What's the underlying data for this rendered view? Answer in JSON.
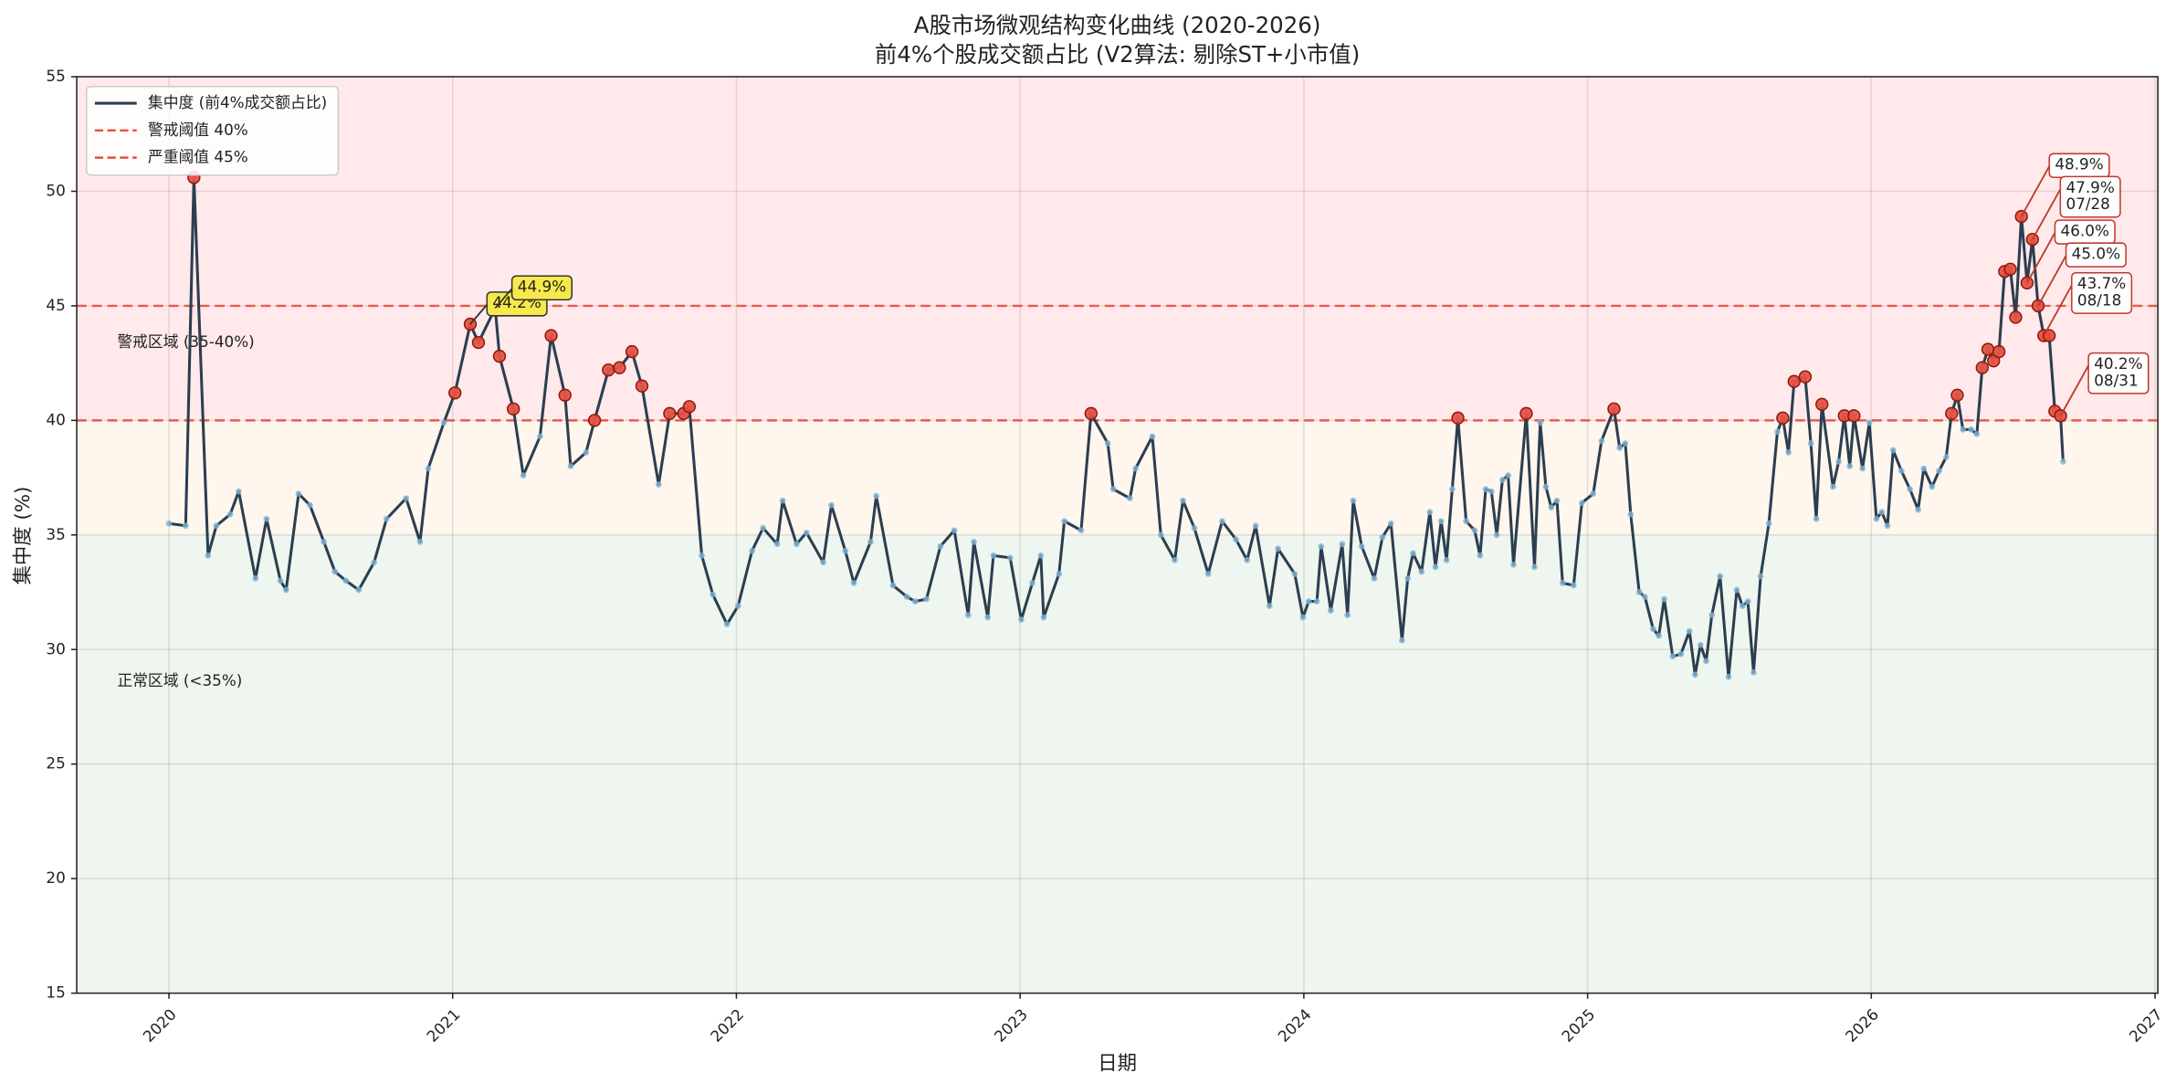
{
  "chart_data": {
    "type": "line",
    "title": "A股市场微观结构变化曲线 (2020-2026)",
    "subtitle": "前4%个股成交额占比 (V2算法: 剔除ST+小市值)",
    "x_label": "日期",
    "y_label": "集中度 (%)",
    "xlim": [
      2019.675,
      2027.01
    ],
    "xticks": [
      2020,
      2021,
      2022,
      2023,
      2024,
      2025,
      2026,
      2027
    ],
    "ylim": [
      15,
      55
    ],
    "yticks": [
      15,
      20,
      25,
      30,
      35,
      40,
      45,
      50,
      55
    ],
    "grid": true,
    "legend": "upper left",
    "highlight_color": "#e74c3c",
    "x": [
      2020.0,
      2020.059,
      2020.088,
      2020.138,
      2020.167,
      2020.216,
      2020.246,
      2020.305,
      2020.344,
      2020.393,
      2020.413,
      2020.457,
      2020.497,
      2020.546,
      2020.585,
      2020.624,
      2020.669,
      2020.723,
      2020.767,
      2020.836,
      2020.885,
      2020.914,
      2020.969,
      2021.008,
      2021.062,
      2021.091,
      2021.15,
      2021.165,
      2021.214,
      2021.249,
      2021.308,
      2021.347,
      2021.396,
      2021.416,
      2021.47,
      2021.5,
      2021.549,
      2021.588,
      2021.632,
      2021.667,
      2021.726,
      2021.765,
      2021.814,
      2021.834,
      2021.878,
      2021.917,
      2021.967,
      2022.006,
      2022.055,
      2022.094,
      2022.144,
      2022.163,
      2022.212,
      2022.247,
      2022.306,
      2022.335,
      2022.384,
      2022.414,
      2022.473,
      2022.493,
      2022.552,
      2022.601,
      2022.63,
      2022.67,
      2022.719,
      2022.768,
      2022.817,
      2022.837,
      2022.886,
      2022.906,
      2022.965,
      2023.004,
      2023.043,
      2023.073,
      2023.083,
      2023.137,
      2023.156,
      2023.215,
      2023.25,
      2023.309,
      2023.328,
      2023.387,
      2023.407,
      2023.466,
      2023.496,
      2023.545,
      2023.574,
      2023.614,
      2023.663,
      2023.712,
      2023.761,
      2023.8,
      2023.83,
      2023.879,
      2023.909,
      2023.968,
      2023.997,
      2024.017,
      2024.046,
      2024.061,
      2024.095,
      2024.135,
      2024.154,
      2024.174,
      2024.204,
      2024.248,
      2024.277,
      2024.307,
      2024.346,
      2024.366,
      2024.385,
      2024.415,
      2024.444,
      2024.464,
      2024.484,
      2024.503,
      2024.523,
      2024.543,
      2024.572,
      2024.602,
      2024.621,
      2024.641,
      2024.661,
      2024.68,
      2024.7,
      2024.72,
      2024.739,
      2024.784,
      2024.813,
      2024.833,
      2024.853,
      2024.872,
      2024.892,
      2024.912,
      2024.951,
      2024.98,
      2025.02,
      2025.049,
      2025.093,
      2025.113,
      2025.133,
      2025.152,
      2025.182,
      2025.202,
      2025.231,
      2025.251,
      2025.27,
      2025.3,
      2025.329,
      2025.359,
      2025.379,
      2025.398,
      2025.418,
      2025.438,
      2025.467,
      2025.497,
      2025.526,
      2025.546,
      2025.565,
      2025.585,
      2025.61,
      2025.639,
      2025.669,
      2025.688,
      2025.708,
      2025.728,
      2025.767,
      2025.787,
      2025.806,
      2025.826,
      2025.865,
      2025.885,
      2025.905,
      2025.924,
      2025.939,
      2025.969,
      2025.993,
      2026.018,
      2026.037,
      2026.057,
      2026.077,
      2026.106,
      2026.136,
      2026.165,
      2026.185,
      2026.214,
      2026.239,
      2026.264,
      2026.283,
      2026.303,
      2026.323,
      2026.352,
      2026.372,
      2026.391,
      2026.411,
      2026.431,
      2026.45,
      2026.47,
      2026.49,
      2026.509,
      2026.529,
      2026.549,
      2026.568,
      2026.588,
      2026.608,
      2026.627,
      2026.647,
      2026.667,
      2026.676
    ],
    "series": [
      {
        "name": "集中度 (前4%成交额占比)",
        "color": "#2c3e50",
        "marker_color": "#7fb3d5",
        "values": [
          35.5,
          35.4,
          50.6,
          34.1,
          35.4,
          35.9,
          36.9,
          33.1,
          35.7,
          33.0,
          32.6,
          36.8,
          36.3,
          34.7,
          33.4,
          33.0,
          32.6,
          33.8,
          35.7,
          36.6,
          34.7,
          37.9,
          39.9,
          41.2,
          44.2,
          43.4,
          44.9,
          42.8,
          40.5,
          37.6,
          39.3,
          43.7,
          41.1,
          38.0,
          38.6,
          40.0,
          42.2,
          42.3,
          43.0,
          41.5,
          37.2,
          40.3,
          40.3,
          40.6,
          34.1,
          32.4,
          31.1,
          31.9,
          34.3,
          35.3,
          34.6,
          36.5,
          34.6,
          35.1,
          33.8,
          36.3,
          34.3,
          32.9,
          34.7,
          36.7,
          32.8,
          32.3,
          32.1,
          32.2,
          34.5,
          35.2,
          31.5,
          34.7,
          31.4,
          34.1,
          34.0,
          31.3,
          32.9,
          34.1,
          31.4,
          33.3,
          35.6,
          35.2,
          40.3,
          39.0,
          37.0,
          36.6,
          37.9,
          39.3,
          35.0,
          33.9,
          36.5,
          35.3,
          33.3,
          35.6,
          34.8,
          33.9,
          35.4,
          31.9,
          34.4,
          33.3,
          31.4,
          32.1,
          32.1,
          34.5,
          31.7,
          34.6,
          31.5,
          36.5,
          34.5,
          33.1,
          34.9,
          35.5,
          30.4,
          33.1,
          34.2,
          33.4,
          36.0,
          33.6,
          35.6,
          33.9,
          37.0,
          40.1,
          35.6,
          35.2,
          34.1,
          37.0,
          36.9,
          35.0,
          37.4,
          37.6,
          33.7,
          40.3,
          33.6,
          39.9,
          37.1,
          36.2,
          36.5,
          32.9,
          32.8,
          36.4,
          36.8,
          39.1,
          40.5,
          38.8,
          39.0,
          35.9,
          32.5,
          32.3,
          30.9,
          30.6,
          32.2,
          29.7,
          29.8,
          30.8,
          28.9,
          30.2,
          29.5,
          31.5,
          33.2,
          28.8,
          32.6,
          31.9,
          32.1,
          29.0,
          33.2,
          35.5,
          39.5,
          40.1,
          38.6,
          41.7,
          41.9,
          39.0,
          35.7,
          40.7,
          37.1,
          38.2,
          40.2,
          38.0,
          40.2,
          37.9,
          39.9,
          35.7,
          36.0,
          35.4,
          38.7,
          37.8,
          37.0,
          36.1,
          37.9,
          37.1,
          37.8,
          38.4,
          40.3,
          41.1,
          39.6,
          39.6,
          39.4,
          42.3,
          43.1,
          42.6,
          43.0,
          46.5,
          46.6,
          44.5,
          48.9,
          46.0,
          47.9,
          45.0,
          43.7,
          43.7,
          40.4,
          40.2,
          38.2
        ]
      }
    ],
    "thresholds": [
      {
        "name": "警戒阈值 40%",
        "value": 40,
        "color": "#e74c3c"
      },
      {
        "name": "严重阈值 45%",
        "value": 45,
        "color": "#e74c3c"
      }
    ],
    "zones": [
      {
        "range": [
          40,
          55
        ],
        "color": "#ffe9eb"
      },
      {
        "range": [
          35,
          40
        ],
        "color": "#fff7ee",
        "label": "警戒区域 (35-40%)",
        "label_color": "#e67e22"
      },
      {
        "range": [
          15,
          35
        ],
        "color": "#eff6ef",
        "label": "正常区域 (<35%)",
        "label_color": "#27ae60"
      }
    ],
    "annotations": [
      {
        "lines": [
          "44.2%"
        ],
        "x": 2021.062,
        "y": 44.2,
        "box_color": "#f7e94a",
        "edge_color": "#333333",
        "text_color": "#c0392b"
      },
      {
        "lines": [
          "44.9%"
        ],
        "x": 2021.15,
        "y": 44.9,
        "box_color": "#f7e94a",
        "edge_color": "#333333",
        "text_color": "#c0392b"
      },
      {
        "lines": [
          "48.9%"
        ],
        "x": 2026.529,
        "y": 48.9,
        "box_color": "#ffffff",
        "edge_color": "#c0392b",
        "text_color": "#c0392b"
      },
      {
        "lines": [
          "47.9%",
          "07/28"
        ],
        "x": 2026.568,
        "y": 47.9,
        "box_color": "#ffffff",
        "edge_color": "#c0392b",
        "text_color": "#c0392b"
      },
      {
        "lines": [
          "46.0%"
        ],
        "x": 2026.549,
        "y": 46.0,
        "box_color": "#ffffff",
        "edge_color": "#c0392b",
        "text_color": "#c0392b"
      },
      {
        "lines": [
          "45.0%"
        ],
        "x": 2026.588,
        "y": 45.0,
        "box_color": "#ffffff",
        "edge_color": "#c0392b",
        "text_color": "#c0392b"
      },
      {
        "lines": [
          "43.7%",
          "08/18"
        ],
        "x": 2026.608,
        "y": 43.7,
        "box_color": "#ffffff",
        "edge_color": "#c0392b",
        "text_color": "#c0392b"
      },
      {
        "lines": [
          "40.2%",
          "08/31"
        ],
        "x": 2026.667,
        "y": 40.2,
        "box_color": "#ffffff",
        "edge_color": "#c0392b",
        "text_color": "#c0392b"
      }
    ]
  }
}
